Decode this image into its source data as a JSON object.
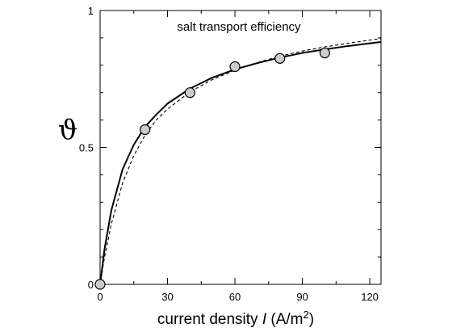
{
  "chart_data": {
    "type": "scatter",
    "title": "salt transport efficiency",
    "xlabel": {
      "main": "current density ",
      "symbol": "I",
      "unit_open": " (A/m",
      "unit_sup": "2",
      "unit_close": ")"
    },
    "ylabel": "ϑ",
    "xlim": [
      0,
      125
    ],
    "ylim": [
      0,
      1
    ],
    "x_ticks": [
      0,
      30,
      60,
      90,
      120
    ],
    "x_tick_labels": [
      "0",
      "30",
      "60",
      "90",
      "120"
    ],
    "x_minor_ticks": [
      15,
      45,
      75,
      105
    ],
    "y_ticks": [
      0,
      0.5,
      1
    ],
    "y_tick_labels": [
      "0",
      "0.5",
      "1"
    ],
    "y_minor_ticks": [
      0.1,
      0.2,
      0.3,
      0.4,
      0.6,
      0.7,
      0.8,
      0.9
    ],
    "grid": false,
    "series": [
      {
        "kind": "points",
        "x": [
          0,
          20,
          40,
          60,
          80,
          100
        ],
        "y": [
          0.0,
          0.565,
          0.7,
          0.795,
          0.825,
          0.845
        ],
        "fill": "#cccccc",
        "stroke": "#000000"
      },
      {
        "kind": "solid-fit",
        "x": [
          0,
          2,
          5,
          10,
          15,
          20,
          25,
          30,
          40,
          50,
          60,
          70,
          80,
          90,
          100,
          110,
          120,
          125
        ],
        "y": [
          0.0,
          0.13,
          0.27,
          0.42,
          0.51,
          0.575,
          0.62,
          0.66,
          0.715,
          0.755,
          0.785,
          0.808,
          0.828,
          0.845,
          0.858,
          0.87,
          0.88,
          0.885
        ],
        "stroke": "#000000"
      },
      {
        "kind": "dashed-fit",
        "x": [
          0,
          2,
          5,
          10,
          15,
          20,
          25,
          30,
          40,
          50,
          60,
          70,
          80,
          90,
          100,
          110,
          120,
          125
        ],
        "y": [
          0.0,
          0.1,
          0.22,
          0.37,
          0.47,
          0.545,
          0.6,
          0.64,
          0.703,
          0.748,
          0.782,
          0.81,
          0.833,
          0.852,
          0.867,
          0.88,
          0.892,
          0.897
        ],
        "stroke": "#000000"
      }
    ]
  }
}
